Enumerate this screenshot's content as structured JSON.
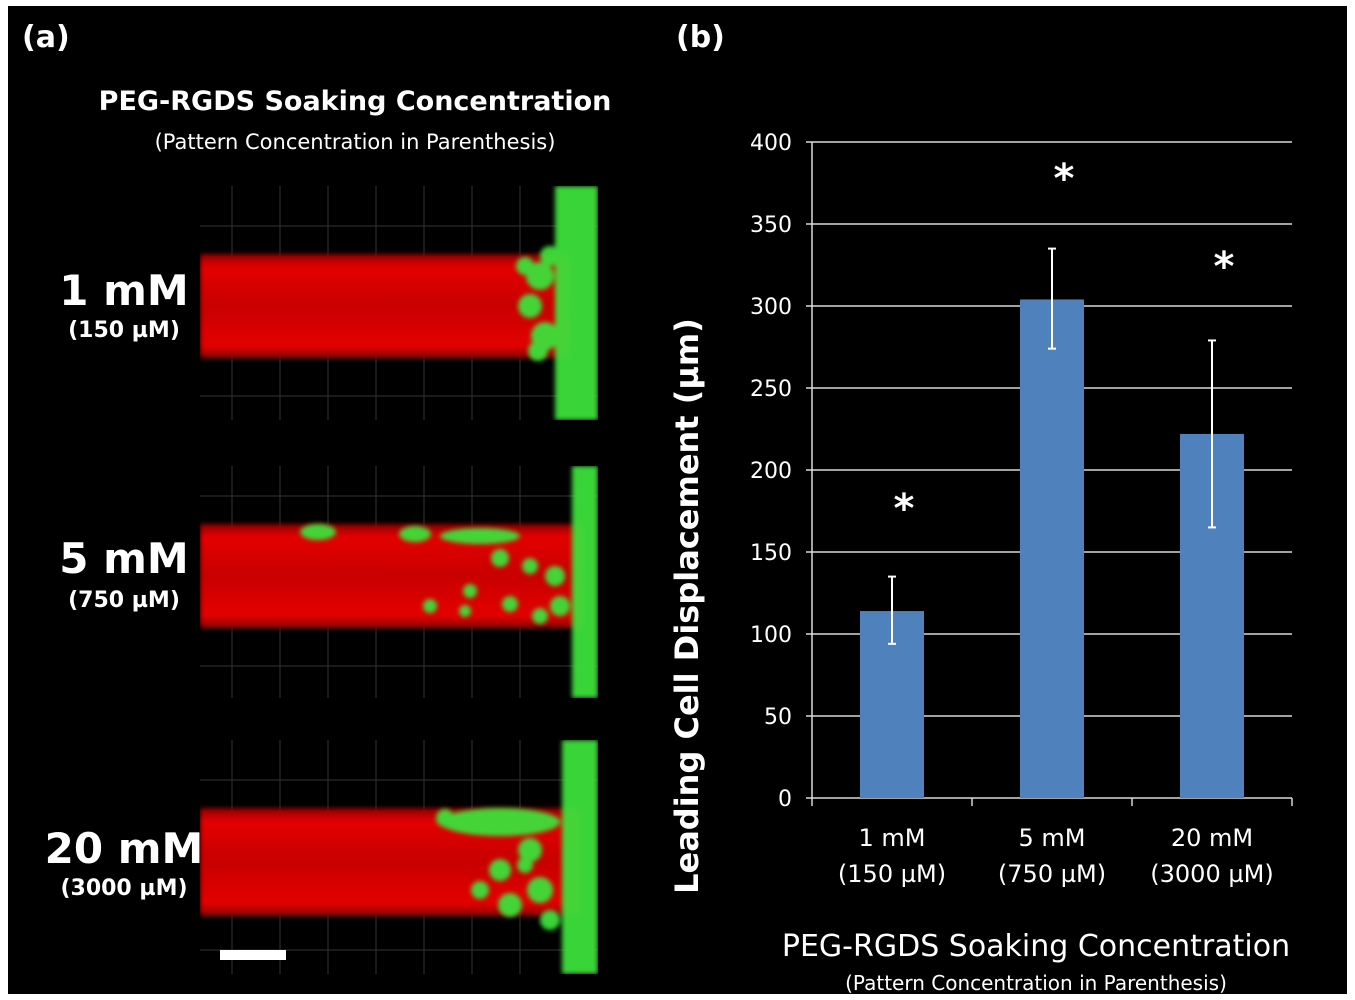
{
  "panel_a": {
    "label": "(a)",
    "title": "PEG-RGDS Soaking Concentration",
    "subtitle": "(Pattern Concentration in Parenthesis)",
    "rows": [
      {
        "concentration": "1 mM",
        "pattern": "(150 µM)"
      },
      {
        "concentration": "5 mM",
        "pattern": "(750 µM)"
      },
      {
        "concentration": "20 mM",
        "pattern": "(3000 µM)"
      }
    ]
  },
  "panel_b": {
    "label": "(b)"
  },
  "colors": {
    "bar": "#4F81BD",
    "background": "#000000",
    "channel_red": "#e00000",
    "cells_green": "#3de03a"
  },
  "chart_data": {
    "type": "bar",
    "categories": [
      "1 mM",
      "5 mM",
      "20 mM"
    ],
    "category_sublabels": [
      "(150 µM)",
      "(750 µM)",
      "(3000 µM)"
    ],
    "values": [
      114,
      304,
      222
    ],
    "error_plus": [
      21,
      31,
      57
    ],
    "error_minus": [
      20,
      30,
      57
    ],
    "significance": [
      "*",
      "*",
      "*"
    ],
    "ylabel": "Leading Cell Displacement (µm)",
    "xlabel": "PEG-RGDS Soaking Concentration",
    "xlabel_sub": "(Pattern Concentration in Parenthesis)",
    "ylim": [
      0,
      400
    ],
    "yticks": [
      0,
      50,
      100,
      150,
      200,
      250,
      300,
      350,
      400
    ],
    "grid": true
  }
}
